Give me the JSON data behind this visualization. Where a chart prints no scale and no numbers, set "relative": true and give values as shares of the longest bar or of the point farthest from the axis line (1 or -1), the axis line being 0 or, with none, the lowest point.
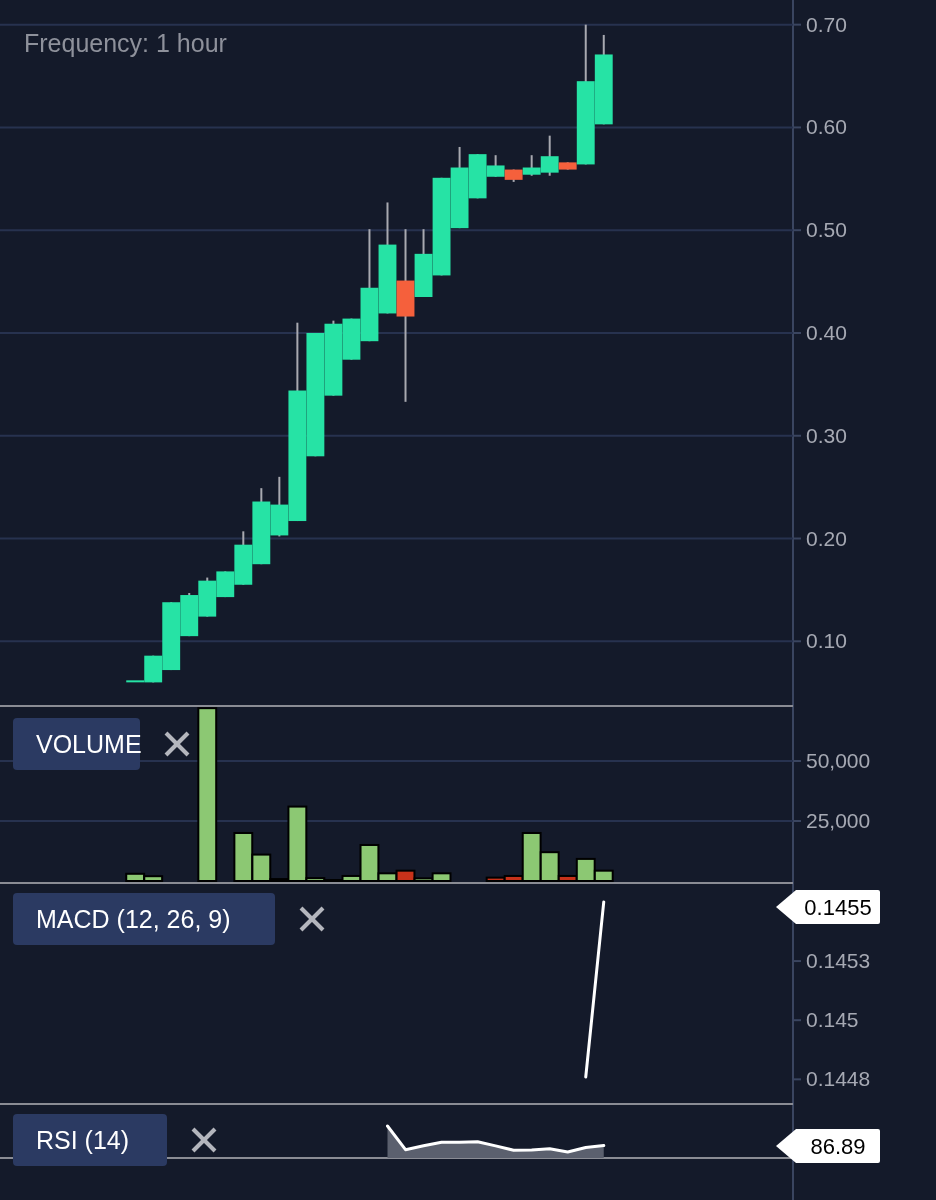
{
  "chart_data": [
    {
      "type": "candlestick",
      "categories": [
        null,
        null,
        null,
        null,
        null,
        null,
        null,
        null,
        null,
        null,
        null,
        null,
        null,
        null,
        null,
        null,
        null,
        null,
        null,
        null,
        null,
        null,
        null,
        null,
        null,
        null,
        null,
        null,
        null,
        null,
        null,
        null,
        null,
        null,
        null,
        null,
        null,
        null,
        null,
        null,
        null,
        null,
        null,
        null
      ],
      "ohlc": [
        null,
        null,
        null,
        null,
        null,
        null,
        null,
        [
          0.062,
          0.062,
          0.062,
          0.062
        ],
        [
          0.06,
          0.086,
          0.06,
          0.086
        ],
        [
          0.072,
          0.138,
          0.072,
          0.138
        ],
        [
          0.105,
          0.147,
          0.105,
          0.145
        ],
        [
          0.124,
          0.162,
          0.124,
          0.159
        ],
        [
          0.143,
          0.168,
          0.143,
          0.168
        ],
        [
          0.155,
          0.207,
          0.155,
          0.194
        ],
        [
          0.175,
          0.249,
          0.175,
          0.236
        ],
        [
          0.203,
          0.26,
          0.202,
          0.233
        ],
        [
          0.217,
          0.41,
          0.217,
          0.344
        ],
        [
          0.28,
          0.4,
          0.28,
          0.4
        ],
        [
          0.339,
          0.412,
          0.339,
          0.409
        ],
        [
          0.374,
          0.414,
          0.374,
          0.414
        ],
        [
          0.392,
          0.501,
          0.392,
          0.444
        ],
        [
          0.419,
          0.527,
          0.419,
          0.486
        ],
        [
          0.451,
          0.501,
          0.333,
          0.416
        ],
        [
          0.435,
          0.501,
          0.435,
          0.477
        ],
        [
          0.456,
          0.551,
          0.456,
          0.551
        ],
        [
          0.502,
          0.581,
          0.502,
          0.561
        ],
        [
          0.531,
          0.574,
          0.531,
          0.574
        ],
        [
          0.552,
          0.573,
          0.552,
          0.563
        ],
        [
          0.559,
          0.559,
          0.547,
          0.549
        ],
        [
          0.554,
          0.573,
          0.553,
          0.561
        ],
        [
          0.556,
          0.592,
          0.553,
          0.572
        ],
        [
          0.566,
          0.566,
          0.559,
          0.559
        ],
        [
          0.564,
          0.7,
          0.564,
          0.645
        ],
        [
          0.603,
          0.69,
          0.603,
          0.671
        ],
        null,
        null,
        null,
        null,
        null,
        null,
        null,
        null,
        null,
        null
      ],
      "colors": [
        null,
        null,
        null,
        null,
        null,
        null,
        null,
        "#26e3a5",
        "#26e3a5",
        "#26e3a5",
        "#26e3a5",
        "#26e3a5",
        "#26e3a5",
        "#26e3a5",
        "#26e3a5",
        "#26e3a5",
        "#26e3a5",
        "#26e3a5",
        "#26e3a5",
        "#26e3a5",
        "#26e3a5",
        "#26e3a5",
        "#f5603c",
        "#26e3a5",
        "#26e3a5",
        "#26e3a5",
        "#26e3a5",
        "#26e3a5",
        "#f5603c",
        "#26e3a5",
        "#26e3a5",
        "#f5603c",
        "#26e3a5",
        "#26e3a5",
        null,
        null,
        null,
        null,
        null,
        null,
        null,
        null,
        null,
        null
      ],
      "ylim": [
        0.038,
        0.724
      ],
      "yticks": [
        {
          "value": 0.1,
          "label": "0.10"
        },
        {
          "value": 0.2,
          "label": "0.20"
        },
        {
          "value": 0.3,
          "label": "0.30"
        },
        {
          "value": 0.4,
          "label": "0.40"
        },
        {
          "value": 0.5,
          "label": "0.50"
        },
        {
          "value": 0.6,
          "label": "0.60"
        },
        {
          "value": 0.7,
          "label": "0.70"
        }
      ],
      "grid": "y",
      "tick_labels": "y",
      "annotations": [
        "Frequency: 1 hour"
      ]
    },
    {
      "type": "bar",
      "title": "VOLUME",
      "categories": [
        null,
        null,
        null,
        null,
        null,
        null,
        null,
        null,
        null,
        null,
        null,
        null,
        null,
        null,
        null,
        null,
        null,
        null,
        null,
        null,
        null,
        null,
        null,
        null,
        null,
        null,
        null,
        null,
        null,
        null,
        null,
        null,
        null,
        null,
        null,
        null,
        null,
        null,
        null,
        null,
        null,
        null,
        null,
        null
      ],
      "values": [
        null,
        null,
        null,
        null,
        null,
        null,
        null,
        3000,
        2000,
        null,
        null,
        72000,
        null,
        20000,
        11000,
        800,
        31000,
        1200,
        400,
        2100,
        15000,
        3200,
        4300,
        1100,
        3200,
        null,
        null,
        1400,
        2100,
        20000,
        12000,
        2100,
        9200,
        4300,
        null,
        null,
        null,
        null,
        null,
        null,
        null,
        null,
        null,
        null
      ],
      "colors": [
        null,
        null,
        null,
        null,
        null,
        null,
        null,
        "#8cc873",
        "#8cc873",
        null,
        null,
        "#8cc873",
        null,
        "#8cc873",
        "#8cc873",
        "#c8321a",
        "#8cc873",
        "#8cc873",
        "#8cc873",
        "#8cc873",
        "#8cc873",
        "#8cc873",
        "#c8321a",
        "#8cc873",
        "#8cc873",
        null,
        null,
        "#c8321a",
        "#c8321a",
        "#8cc873",
        "#8cc873",
        "#c8321a",
        "#8cc873",
        "#8cc873",
        null,
        null,
        null,
        null,
        null,
        null,
        null,
        null,
        null,
        null
      ],
      "ylim": [
        0,
        72900
      ],
      "yticks": [
        {
          "value": 25000,
          "label": "25,000"
        },
        {
          "value": 50000,
          "label": "50,000"
        }
      ],
      "grid": "y",
      "tick_labels": "y"
    },
    {
      "type": "line",
      "title": "MACD (12, 26, 9)",
      "categories": [
        null,
        null,
        null,
        null,
        null,
        null,
        null,
        null,
        null,
        null,
        null,
        null,
        null,
        null,
        null,
        null,
        null,
        null,
        null,
        null,
        null,
        null,
        null,
        null,
        null,
        null,
        null,
        null,
        null,
        null,
        null,
        null,
        null,
        null,
        null,
        null,
        null,
        null,
        null,
        null,
        null,
        null,
        null,
        null
      ],
      "series": [
        {
          "color": "#ffffff",
          "values": [
            null,
            null,
            null,
            null,
            null,
            null,
            null,
            null,
            null,
            null,
            null,
            null,
            null,
            null,
            null,
            null,
            null,
            null,
            null,
            null,
            null,
            null,
            null,
            null,
            null,
            null,
            null,
            null,
            null,
            null,
            null,
            null,
            0.14476,
            0.1455,
            null,
            null,
            null,
            null,
            null,
            null,
            null,
            null,
            null,
            null
          ]
        }
      ],
      "annotations": [
        "0.1455"
      ],
      "ylim": [
        0.14465,
        0.14558
      ],
      "yticks": [
        {
          "value": 0.14475,
          "label": "0.1448"
        },
        {
          "value": 0.145,
          "label": "0.145"
        },
        {
          "value": 0.14525,
          "label": "0.1453"
        }
      ],
      "tick_labels": "y"
    },
    {
      "type": "area",
      "title": "RSI (14)",
      "relative": true,
      "categories": [
        null,
        null,
        null,
        null,
        null,
        null,
        null,
        null,
        null,
        null,
        null,
        null,
        null,
        null,
        null,
        null,
        null,
        null,
        null,
        null,
        null,
        null,
        null,
        null,
        null,
        null,
        null,
        null,
        null,
        null,
        null,
        null,
        null,
        null,
        null,
        null,
        null,
        null,
        null,
        null,
        null,
        null,
        null,
        null
      ],
      "series": [
        {
          "color": "#5b606e",
          "values": [
            null,
            null,
            null,
            null,
            null,
            null,
            null,
            null,
            null,
            null,
            null,
            null,
            null,
            null,
            null,
            null,
            null,
            null,
            null,
            null,
            null,
            1,
            0.26,
            0.38,
            0.49,
            0.49,
            0.51,
            0.38,
            0.24,
            0.25,
            0.29,
            0.19,
            0.33,
            0.39,
            null,
            null,
            null,
            null,
            null,
            null,
            null,
            null,
            null,
            null
          ]
        }
      ],
      "annotations": [
        "86.89"
      ]
    }
  ]
}
